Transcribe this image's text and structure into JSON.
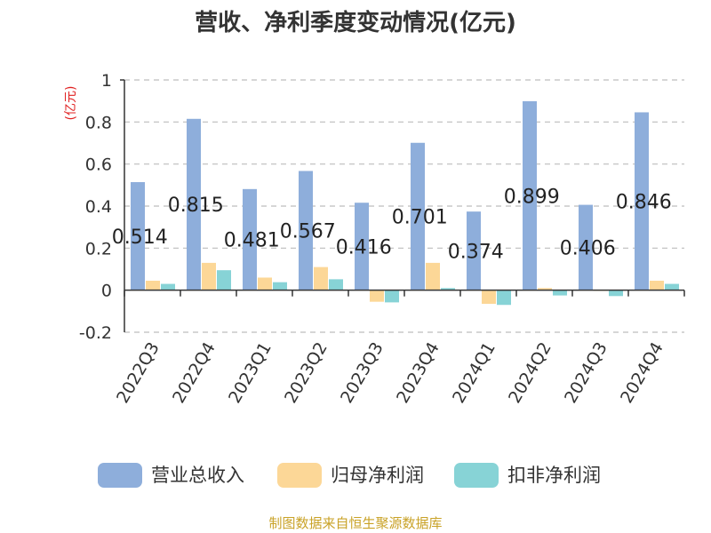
{
  "chart_data": {
    "type": "bar",
    "title": "营收、净利季度变动情况(亿元)",
    "unit_label": "(亿元)",
    "categories": [
      "2022Q3",
      "2022Q4",
      "2023Q1",
      "2023Q2",
      "2023Q3",
      "2023Q4",
      "2024Q1",
      "2024Q2",
      "2024Q3",
      "2024Q4"
    ],
    "series": [
      {
        "name": "营业总收入",
        "color": "#8eaedb",
        "values": [
          0.514,
          0.815,
          0.481,
          0.567,
          0.416,
          0.701,
          0.374,
          0.899,
          0.406,
          0.846
        ]
      },
      {
        "name": "归母净利润",
        "color": "#fcd797",
        "values": [
          0.045,
          0.13,
          0.06,
          0.11,
          -0.055,
          0.13,
          -0.065,
          0.01,
          0.0,
          0.045
        ]
      },
      {
        "name": "扣非净利润",
        "color": "#87d3d6",
        "values": [
          0.03,
          0.095,
          0.038,
          0.052,
          -0.058,
          0.01,
          -0.07,
          -0.025,
          -0.028,
          0.03
        ]
      }
    ],
    "data_labels": [
      "0.514",
      "0.815",
      "0.481",
      "0.567",
      "0.416",
      "0.701",
      "0.374",
      "0.899",
      "0.406",
      "0.846"
    ],
    "ylim": [
      -0.2,
      1
    ],
    "yticks": [
      "-0.2",
      "0",
      "0.2",
      "0.4",
      "0.6",
      "0.8",
      "1"
    ],
    "grid": true,
    "legend_position": "bottom"
  },
  "footer": {
    "source": "制图数据来自恒生聚源数据库"
  }
}
